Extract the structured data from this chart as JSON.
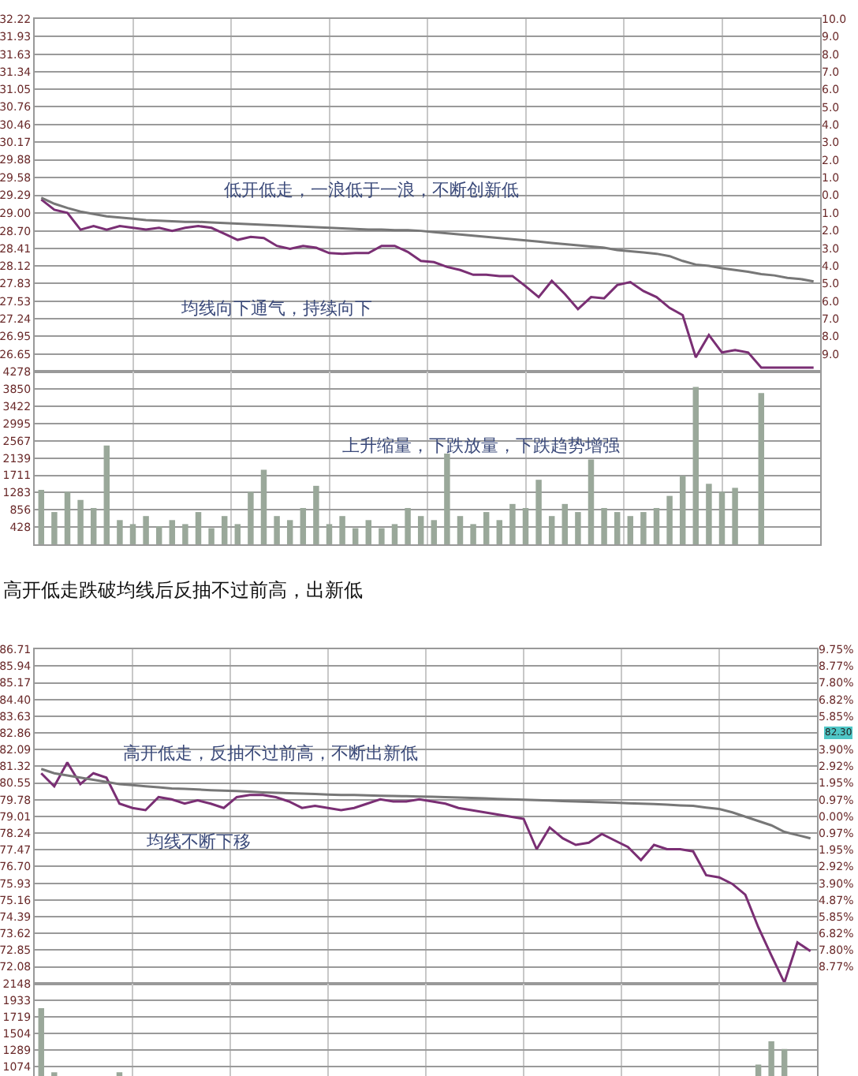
{
  "chart_data": [
    {
      "type": "line",
      "categories": [
        null,
        null,
        null,
        null,
        null,
        null,
        null,
        null,
        null,
        null,
        null,
        null,
        null,
        null,
        null,
        null,
        null,
        null,
        null,
        null,
        null,
        null,
        null,
        null,
        null,
        null,
        null,
        null,
        null,
        null,
        null,
        null,
        null,
        null,
        null,
        null,
        null,
        null,
        null,
        null,
        null,
        null,
        null,
        null,
        null,
        null,
        null,
        null,
        null,
        null,
        null,
        null,
        null,
        null,
        null,
        null,
        null,
        null,
        null,
        null
      ],
      "series": [
        {
          "color": "#7a2f74",
          "values": [
            29.22,
            29.05,
            29.0,
            28.72,
            28.78,
            28.72,
            28.78,
            28.75,
            28.72,
            28.75,
            28.7,
            28.75,
            28.78,
            28.75,
            28.65,
            28.55,
            28.6,
            28.58,
            28.45,
            28.4,
            28.45,
            28.42,
            28.33,
            28.32,
            28.33,
            28.33,
            28.45,
            28.45,
            28.35,
            28.2,
            28.18,
            28.1,
            28.05,
            27.97,
            27.97,
            27.95,
            27.95,
            27.78,
            27.6,
            27.87,
            27.65,
            27.4,
            27.6,
            27.58,
            27.8,
            27.85,
            27.7,
            27.6,
            27.42,
            27.3,
            26.6,
            26.97,
            26.68,
            26.72,
            26.68,
            26.43,
            26.43,
            26.43,
            26.43,
            26.43
          ]
        },
        {
          "color": "#777777",
          "values": [
            29.25,
            29.15,
            29.08,
            29.02,
            28.98,
            28.94,
            28.92,
            28.9,
            28.88,
            28.87,
            28.86,
            28.85,
            28.85,
            28.84,
            28.83,
            28.82,
            28.81,
            28.8,
            28.79,
            28.78,
            28.77,
            28.76,
            28.75,
            28.74,
            28.73,
            28.72,
            28.72,
            28.71,
            28.71,
            28.7,
            28.68,
            28.66,
            28.64,
            28.62,
            28.6,
            28.58,
            28.56,
            28.54,
            28.52,
            28.5,
            28.48,
            28.46,
            28.44,
            28.42,
            28.38,
            28.36,
            28.34,
            28.32,
            28.28,
            28.2,
            28.14,
            28.12,
            28.08,
            28.05,
            28.02,
            27.98,
            27.96,
            27.92,
            27.9,
            27.86
          ]
        }
      ],
      "ylim": [
        26.36,
        32.22
      ],
      "yticks": [
        32.22,
        31.93,
        31.63,
        31.34,
        31.05,
        30.76,
        30.46,
        30.17,
        29.88,
        29.58,
        29.29,
        {
          "value": 29.0,
          "label": "29.00"
        },
        {
          "value": 28.7,
          "label": "28.70"
        },
        28.41,
        28.12,
        27.83,
        27.53,
        27.24,
        26.95,
        26.65
      ],
      "y2lim": [
        -10,
        10
      ],
      "y2ticks": [
        {
          "value": 10,
          "label": "10.0"
        },
        {
          "value": 9,
          "label": "9.0"
        },
        {
          "value": 8,
          "label": "8.0"
        },
        {
          "value": 7,
          "label": "7.0"
        },
        {
          "value": 6,
          "label": "6.0"
        },
        {
          "value": 5,
          "label": "5.0"
        },
        {
          "value": 4,
          "label": "4.0"
        },
        {
          "value": 3,
          "label": "3.0"
        },
        {
          "value": 2,
          "label": "2.0"
        },
        {
          "value": 1,
          "label": "1.0"
        },
        {
          "value": 0,
          "label": "0.0"
        },
        {
          "value": -1,
          "label": "1.0"
        },
        {
          "value": -2,
          "label": "2.0"
        },
        {
          "value": -3,
          "label": "3.0"
        },
        {
          "value": -4,
          "label": "4.0"
        },
        {
          "value": -5,
          "label": "5.0"
        },
        {
          "value": -6,
          "label": "6.0"
        },
        {
          "value": -7,
          "label": "7.0"
        },
        {
          "value": -8,
          "label": "8.0"
        },
        {
          "value": -9,
          "label": "9.0"
        }
      ],
      "annotations": [
        "低开低走，一浪低于一浪，不断创新低",
        "均线向下通气，持续向下"
      ],
      "grid": true,
      "tick_labels": "y"
    },
    {
      "type": "bar",
      "categories": [
        null,
        null,
        null,
        null,
        null,
        null,
        null,
        null,
        null,
        null,
        null,
        null,
        null,
        null,
        null,
        null,
        null,
        null,
        null,
        null,
        null,
        null,
        null,
        null,
        null,
        null,
        null,
        null,
        null,
        null,
        null,
        null,
        null,
        null,
        null,
        null,
        null,
        null,
        null,
        null,
        null,
        null,
        null,
        null,
        null,
        null,
        null,
        null,
        null,
        null,
        null,
        null,
        null,
        null,
        null,
        null,
        null,
        null,
        null,
        null
      ],
      "series": [
        {
          "color": "#9aa89a",
          "values": [
            1350,
            800,
            1300,
            1100,
            900,
            2450,
            600,
            500,
            700,
            450,
            600,
            500,
            800,
            400,
            700,
            500,
            1300,
            1850,
            700,
            600,
            900,
            1450,
            500,
            700,
            400,
            600,
            400,
            500,
            900,
            700,
            600,
            2250,
            700,
            500,
            800,
            600,
            1000,
            900,
            1600,
            700,
            1000,
            800,
            2100,
            900,
            800,
            700,
            800,
            900,
            1200,
            1700,
            3900,
            1500,
            1300,
            1400,
            null,
            3750,
            null,
            null,
            null,
            null
          ]
        }
      ],
      "ylim": [
        0,
        4278
      ],
      "yticks": [
        428,
        856,
        1283,
        1711,
        2139,
        2567,
        2995,
        3422,
        3850,
        4278
      ],
      "annotations": [
        "上升缩量，下跌放量，下跌趋势增强"
      ],
      "grid": true,
      "tick_labels": "y"
    },
    {
      "type": "line",
      "title": "高开低走跌破均线后反抽不过前高，出新低",
      "categories": [
        null,
        null,
        null,
        null,
        null,
        null,
        null,
        null,
        null,
        null,
        null,
        null,
        null,
        null,
        null,
        null,
        null,
        null,
        null,
        null,
        null,
        null,
        null,
        null,
        null,
        null,
        null,
        null,
        null,
        null,
        null,
        null,
        null,
        null,
        null,
        null,
        null,
        null,
        null,
        null,
        null,
        null,
        null,
        null,
        null,
        null,
        null,
        null,
        null,
        null,
        null,
        null,
        null,
        null,
        null,
        null,
        null,
        null,
        null,
        null
      ],
      "series": [
        {
          "color": "#7a2f74",
          "values": [
            81.0,
            80.4,
            81.5,
            80.5,
            81.0,
            80.8,
            79.6,
            79.4,
            79.3,
            79.9,
            79.8,
            79.6,
            79.75,
            79.6,
            79.4,
            79.9,
            80.0,
            80.0,
            79.9,
            79.7,
            79.4,
            79.5,
            79.4,
            79.3,
            79.4,
            79.6,
            79.8,
            79.7,
            79.7,
            79.8,
            79.7,
            79.6,
            79.4,
            79.3,
            79.2,
            79.1,
            79.0,
            78.9,
            77.5,
            78.5,
            78.0,
            77.7,
            77.8,
            78.2,
            77.9,
            77.6,
            77.0,
            77.7,
            77.5,
            77.5,
            77.4,
            76.3,
            76.2,
            75.9,
            75.4,
            73.9,
            72.6,
            71.35,
            73.2,
            72.8
          ]
        },
        {
          "color": "#777777",
          "values": [
            81.2,
            81.0,
            80.9,
            80.8,
            80.7,
            80.6,
            80.5,
            80.45,
            80.4,
            80.35,
            80.3,
            80.28,
            80.25,
            80.22,
            80.2,
            80.18,
            80.15,
            80.12,
            80.1,
            80.08,
            80.06,
            80.04,
            80.02,
            80.0,
            80.0,
            79.98,
            79.96,
            79.95,
            79.94,
            79.93,
            79.92,
            79.9,
            79.88,
            79.86,
            79.84,
            79.82,
            79.8,
            79.78,
            79.76,
            79.74,
            79.72,
            79.7,
            79.68,
            79.66,
            79.64,
            79.62,
            79.6,
            79.58,
            79.55,
            79.52,
            79.5,
            79.42,
            79.35,
            79.2,
            79.0,
            78.8,
            78.6,
            78.3,
            78.15,
            78.0
          ]
        }
      ],
      "ylim": [
        71.31,
        86.71
      ],
      "yticks": [
        86.71,
        85.94,
        85.17,
        {
          "value": 84.4,
          "label": "84.40"
        },
        83.63,
        82.86,
        82.09,
        81.32,
        80.55,
        79.78,
        79.01,
        78.24,
        77.47,
        {
          "value": 76.7,
          "label": "76.70"
        },
        75.93,
        75.16,
        74.39,
        73.62,
        72.85,
        72.08
      ],
      "y2lim": [
        -9.75,
        9.75
      ],
      "y2ticks": [
        {
          "value": 9.75,
          "label": "9.75%"
        },
        {
          "value": 8.77,
          "label": "8.77%"
        },
        {
          "value": 7.8,
          "label": "7.80%"
        },
        {
          "value": 6.82,
          "label": "6.82%"
        },
        {
          "value": 5.85,
          "label": "5.85%"
        },
        {
          "value": 3.9,
          "label": "3.90%"
        },
        {
          "value": 2.92,
          "label": "2.92%"
        },
        {
          "value": 1.95,
          "label": "1.95%"
        },
        {
          "value": 0.97,
          "label": "0.97%"
        },
        {
          "value": 0,
          "label": "0.00%"
        },
        {
          "value": -0.97,
          "label": "0.97%"
        },
        {
          "value": -1.95,
          "label": "1.95%"
        },
        {
          "value": -2.92,
          "label": "2.92%"
        },
        {
          "value": -3.9,
          "label": "3.90%"
        },
        {
          "value": -4.87,
          "label": "4.87%"
        },
        {
          "value": -5.85,
          "label": "5.85%"
        },
        {
          "value": -6.82,
          "label": "6.82%"
        },
        {
          "value": -7.8,
          "label": "7.80%"
        },
        {
          "value": -8.77,
          "label": "8.77%"
        }
      ],
      "annotations": [
        "高开低走，反抽不过前高，不断出新低",
        "均线不断下移",
        "82.30"
      ],
      "grid": true,
      "tick_labels": "y"
    },
    {
      "type": "bar",
      "categories": [
        null,
        null,
        null,
        null,
        null,
        null,
        null,
        null,
        null,
        null,
        null,
        null,
        null,
        null,
        null,
        null,
        null,
        null,
        null,
        null,
        null,
        null,
        null,
        null,
        null,
        null,
        null,
        null,
        null,
        null,
        null,
        null,
        null,
        null,
        null,
        null,
        null,
        null,
        null,
        null,
        null,
        null,
        null,
        null,
        null,
        null,
        null,
        null,
        null,
        null,
        null,
        null,
        null,
        null,
        null,
        null,
        null,
        null,
        null,
        null
      ],
      "series": [
        {
          "color": "#9aa89a",
          "values": [
            1830,
            1000,
            null,
            null,
            null,
            null,
            1000,
            null,
            null,
            null,
            null,
            null,
            null,
            null,
            null,
            null,
            null,
            null,
            null,
            null,
            null,
            null,
            null,
            null,
            null,
            null,
            null,
            null,
            null,
            null,
            null,
            null,
            null,
            null,
            null,
            null,
            null,
            null,
            null,
            null,
            null,
            null,
            null,
            null,
            null,
            null,
            null,
            null,
            null,
            null,
            null,
            null,
            null,
            null,
            null,
            1100,
            1400,
            1300,
            null,
            null
          ]
        }
      ],
      "ylim": [
        952,
        2148
      ],
      "yticks": [
        1074,
        1289,
        1504,
        1719,
        1933,
        2148
      ],
      "grid": true,
      "tick_labels": "y"
    }
  ]
}
